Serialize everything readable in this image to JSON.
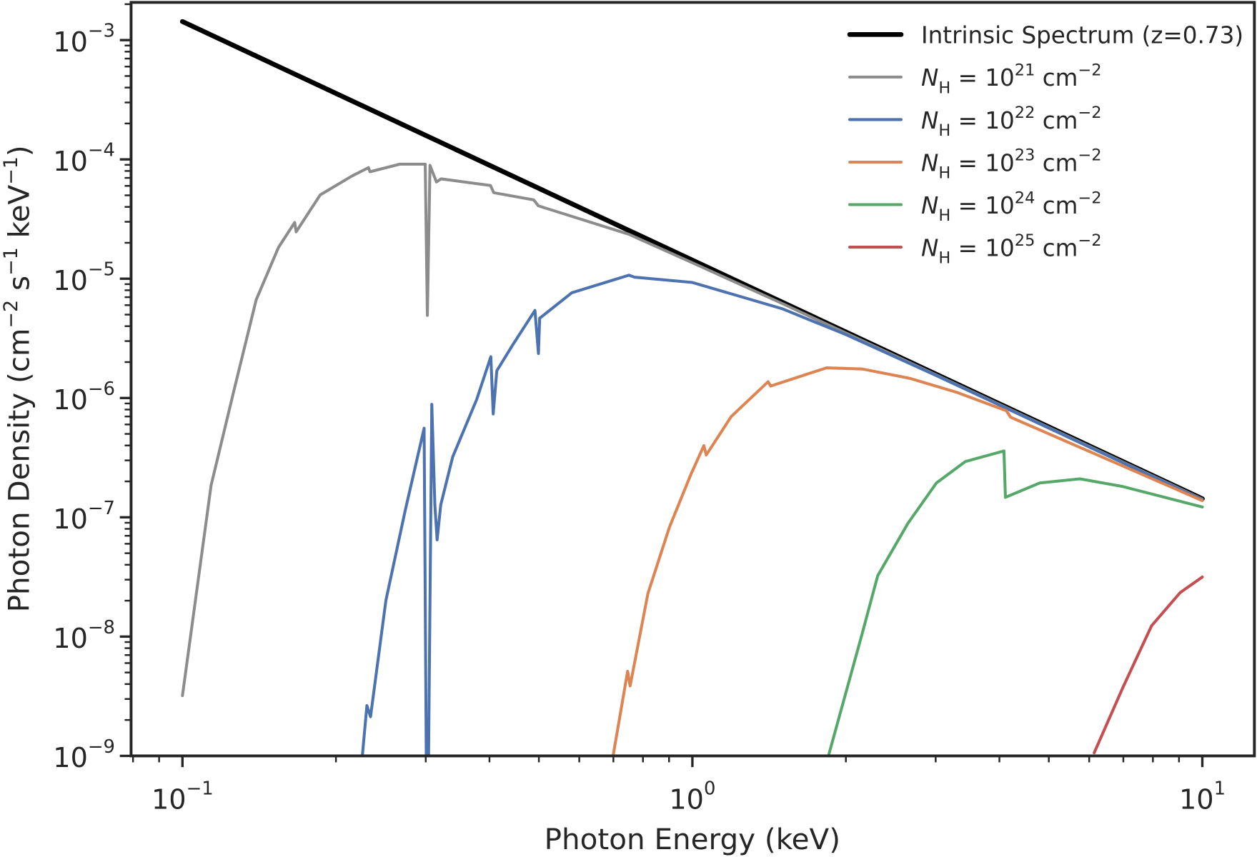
{
  "chart_data": {
    "type": "line",
    "title": "",
    "xlabel": "Photon Energy (keV)",
    "ylabel_parts": [
      {
        "t": "Photon Density (cm"
      },
      {
        "t": "−2",
        "sup": true
      },
      {
        "t": " s"
      },
      {
        "t": "−1",
        "sup": true
      },
      {
        "t": " keV"
      },
      {
        "t": "−1",
        "sup": true
      },
      {
        "t": ")"
      }
    ],
    "xscale": "log",
    "yscale": "log",
    "xlim": [
      0.0793,
      12.65
    ],
    "ylim": [
      1e-09,
      0.00207
    ],
    "grid": false,
    "legend_position": "top-right",
    "x_ticks": [
      {
        "value": 0.1,
        "base": "10",
        "exp": "−1"
      },
      {
        "value": 1,
        "base": "10",
        "exp": "0"
      },
      {
        "value": 10,
        "base": "10",
        "exp": "1"
      }
    ],
    "y_ticks": [
      {
        "value": 0.001,
        "base": "10",
        "exp": "−3"
      },
      {
        "value": 0.0001,
        "base": "10",
        "exp": "−4"
      },
      {
        "value": 1e-05,
        "base": "10",
        "exp": "−5"
      },
      {
        "value": 1e-06,
        "base": "10",
        "exp": "−6"
      },
      {
        "value": 1e-07,
        "base": "10",
        "exp": "−7"
      },
      {
        "value": 1e-08,
        "base": "10",
        "exp": "−8"
      },
      {
        "value": 1e-09,
        "base": "10",
        "exp": "−9"
      }
    ],
    "series": [
      {
        "key": "intrinsic",
        "label": {
          "text": "Intrinsic Spectrum (z=0.73)"
        },
        "color": "#000000",
        "points": [
          [
            0.1,
            0.00143
          ],
          [
            10,
            1.43e-07
          ]
        ]
      },
      {
        "key": "nh21",
        "label": {
          "symbol": "N",
          "sub": "H",
          "eq": " = 10",
          "exp": "21",
          "unit": " cm",
          "unit_exp": "−2"
        },
        "color": "#8c8c8c",
        "points": [
          [
            0.1,
            3.2e-09
          ],
          [
            0.1138,
            1.85e-07
          ],
          [
            0.1262,
            1.16e-06
          ],
          [
            0.1395,
            6.65e-06
          ],
          [
            0.1543,
            1.83e-05
          ],
          [
            0.166,
            2.96e-05
          ],
          [
            0.1671,
            2.47e-05
          ],
          [
            0.1862,
            5.03e-05
          ],
          [
            0.215,
            7.26e-05
          ],
          [
            0.2317,
            8.53e-05
          ],
          [
            0.2332,
            7.88e-05
          ],
          [
            0.2668,
            9.12e-05
          ],
          [
            0.2993,
            9.12e-05
          ],
          [
            0.3022,
            4.93e-06
          ],
          [
            0.3058,
            8.91e-05
          ],
          [
            0.3148,
            6.47e-05
          ],
          [
            0.3216,
            6.87e-05
          ],
          [
            0.4019,
            6.04e-05
          ],
          [
            0.4078,
            5.26e-05
          ],
          [
            0.4885,
            4.58e-05
          ],
          [
            0.4989,
            4.08e-05
          ],
          [
            0.75,
            2.36e-05
          ],
          [
            1.0,
            1.36e-05
          ],
          [
            1.5,
            6.2e-06
          ],
          [
            3,
            1.57e-06
          ],
          [
            10,
            1.42e-07
          ]
        ]
      },
      {
        "key": "nh22",
        "label": {
          "symbol": "N",
          "sub": "H",
          "eq": " = 10",
          "exp": "22",
          "unit": " cm",
          "unit_exp": "−2"
        },
        "color": "#4c72b0",
        "points": [
          [
            0.2253,
            1e-09
          ],
          [
            0.23,
            2.64e-09
          ],
          [
            0.2338,
            2.13e-09
          ],
          [
            0.2506,
            2.01e-08
          ],
          [
            0.2733,
            1.13e-07
          ],
          [
            0.2978,
            5.58e-07
          ],
          [
            0.301,
            5e-10
          ],
          [
            0.3034,
            5e-10
          ],
          [
            0.3083,
            8.85e-07
          ],
          [
            0.3126,
            1.27e-07
          ],
          [
            0.3158,
            6.47e-08
          ],
          [
            0.321,
            1.27e-07
          ],
          [
            0.3388,
            3.21e-07
          ],
          [
            0.3775,
            9.7e-07
          ],
          [
            0.4025,
            2.22e-06
          ],
          [
            0.4068,
            7.35e-07
          ],
          [
            0.4135,
            1.69e-06
          ],
          [
            0.4434,
            2.75e-06
          ],
          [
            0.4912,
            5.42e-06
          ],
          [
            0.499,
            2.36e-06
          ],
          [
            0.5018,
            4.66e-06
          ],
          [
            0.5801,
            7.62e-06
          ],
          [
            0.7509,
            1.07e-05
          ],
          [
            0.77,
            1.03e-05
          ],
          [
            1.0,
            9.3e-06
          ],
          [
            1.5,
            5.6e-06
          ],
          [
            2,
            3.4e-06
          ],
          [
            3,
            1.55e-06
          ],
          [
            5,
            5.6e-07
          ],
          [
            10,
            1.4e-07
          ]
        ]
      },
      {
        "key": "nh23",
        "label": {
          "symbol": "N",
          "sub": "H",
          "eq": " = 10",
          "exp": "23",
          "unit": " cm",
          "unit_exp": "−2"
        },
        "color": "#dd8452",
        "points": [
          [
            0.6998,
            1.03e-09
          ],
          [
            0.7465,
            5.12e-09
          ],
          [
            0.7549,
            3.86e-09
          ],
          [
            0.8181,
            2.3e-08
          ],
          [
            0.9012,
            8.22e-08
          ],
          [
            0.9929,
            2.28e-07
          ],
          [
            1.0532,
            3.99e-07
          ],
          [
            1.0646,
            3.33e-07
          ],
          [
            1.192,
            7e-07
          ],
          [
            1.408,
            1.37e-06
          ],
          [
            1.424,
            1.26e-06
          ],
          [
            1.832,
            1.79e-06
          ],
          [
            2.154,
            1.75e-06
          ],
          [
            2.671,
            1.46e-06
          ],
          [
            3.311,
            1.11e-06
          ],
          [
            4.128,
            7.82e-07
          ],
          [
            4.206,
            6.91e-07
          ],
          [
            10,
            1.38e-07
          ]
        ]
      },
      {
        "key": "nh24",
        "label": {
          "symbol": "N",
          "sub": "H",
          "eq": " = 10",
          "exp": "24",
          "unit": " cm",
          "unit_exp": "−2"
        },
        "color": "#55a868",
        "points": [
          [
            1.852,
            1.03e-09
          ],
          [
            2.154,
            1.07e-08
          ],
          [
            2.309,
            3.24e-08
          ],
          [
            2.646,
            8.89e-08
          ],
          [
            3.01,
            1.94e-07
          ],
          [
            3.428,
            2.93e-07
          ],
          [
            4.083,
            3.6e-07
          ],
          [
            4.11,
            1.47e-07
          ],
          [
            4.799,
            1.94e-07
          ],
          [
            5.753,
            2.1e-07
          ],
          [
            6.985,
            1.81e-07
          ],
          [
            10,
            1.22e-07
          ]
        ]
      },
      {
        "key": "nh25",
        "label": {
          "symbol": "N",
          "sub": "H",
          "eq": " = 10",
          "exp": "25",
          "unit": " cm",
          "unit_exp": "−2"
        },
        "color": "#c44e52",
        "points": [
          [
            6.136,
            1.06e-09
          ],
          [
            6.985,
            3.74e-09
          ],
          [
            7.95,
            1.23e-08
          ],
          [
            9.05,
            2.34e-08
          ],
          [
            10,
            3.16e-08
          ]
        ]
      }
    ]
  }
}
